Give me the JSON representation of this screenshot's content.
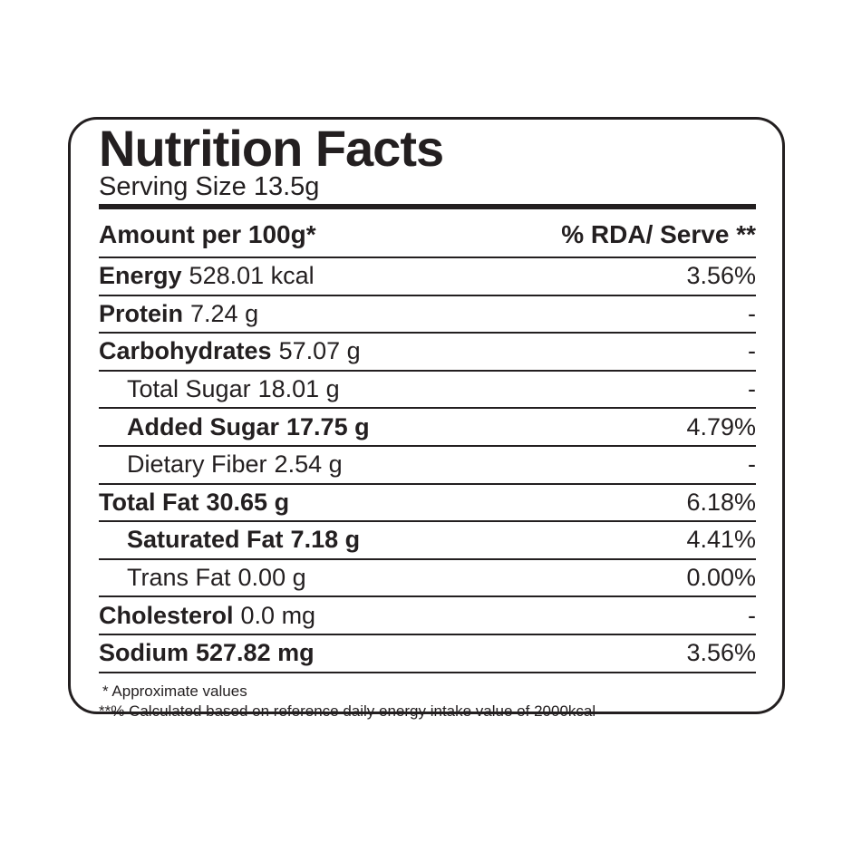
{
  "label": {
    "title": "Nutrition Facts",
    "serving_size": "Serving Size 13.5g",
    "columns": {
      "left": "Amount per 100g*",
      "right": "% RDA/ Serve **"
    },
    "rows": [
      {
        "name": "Energy",
        "value": "528.01 kcal",
        "rda": "3.56%",
        "emphasis": "name",
        "indent": false
      },
      {
        "name": "Protein",
        "value": "7.24 g",
        "rda": "-",
        "emphasis": "name",
        "indent": false
      },
      {
        "name": "Carbohydrates",
        "value": "57.07 g",
        "rda": "-",
        "emphasis": "name",
        "indent": false
      },
      {
        "name": "Total Sugar",
        "value": "18.01 g",
        "rda": "-",
        "emphasis": "none",
        "indent": true
      },
      {
        "name": "Added Sugar",
        "value": "17.75 g",
        "rda": "4.79%",
        "emphasis": "all",
        "indent": true
      },
      {
        "name": "Dietary Fiber",
        "value": "2.54 g",
        "rda": "-",
        "emphasis": "none",
        "indent": true
      },
      {
        "name": "Total Fat",
        "value": "30.65 g",
        "rda": "6.18%",
        "emphasis": "all",
        "indent": false
      },
      {
        "name": "Saturated Fat",
        "value": "7.18 g",
        "rda": "4.41%",
        "emphasis": "all",
        "indent": true
      },
      {
        "name": "Trans Fat",
        "value": "0.00 g",
        "rda": "0.00%",
        "emphasis": "none",
        "indent": true
      },
      {
        "name": "Cholesterol",
        "value": "0.0 mg",
        "rda": "-",
        "emphasis": "name",
        "indent": false
      },
      {
        "name": "Sodium",
        "value": "527.82 mg",
        "rda": "3.56%",
        "emphasis": "all",
        "indent": false
      }
    ],
    "footnotes": [
      "* Approximate values",
      "**% Calculated based on reference daily energy intake value of 2000kcal"
    ],
    "colors": {
      "ink": "#231f20",
      "background": "#ffffff"
    }
  }
}
